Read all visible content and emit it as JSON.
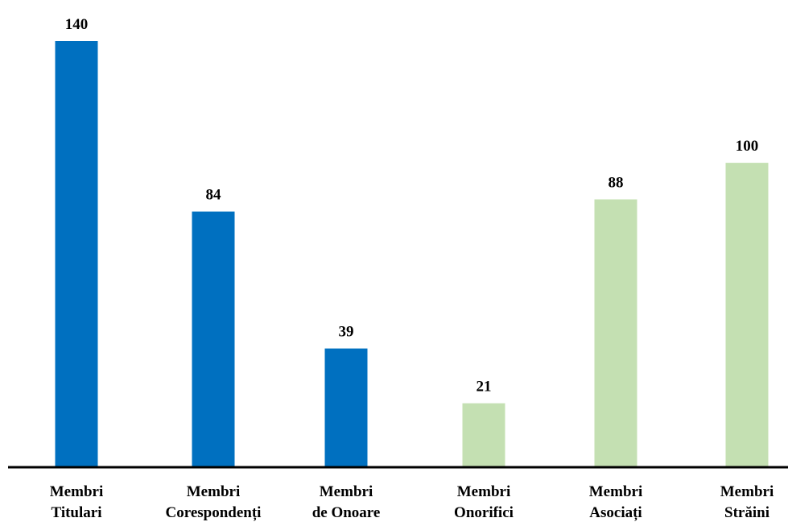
{
  "chart_data": {
    "type": "bar",
    "categories": [
      [
        "Membri",
        "Titulari"
      ],
      [
        "Membri",
        "Corespondenți"
      ],
      [
        "Membri",
        "de Onoare"
      ],
      [
        "Membri",
        "Onorifici"
      ],
      [
        "Membri",
        "Asociați"
      ],
      [
        "Membri",
        "Străini"
      ]
    ],
    "values": [
      140,
      84,
      39,
      21,
      88,
      100
    ],
    "colors": [
      "#0070c0",
      "#0070c0",
      "#0070c0",
      "#c4e0b2",
      "#c4e0b2",
      "#c4e0b2"
    ],
    "data_labels": true,
    "grid": false,
    "legend": "none",
    "title": "",
    "xlabel": "",
    "ylabel": ""
  }
}
